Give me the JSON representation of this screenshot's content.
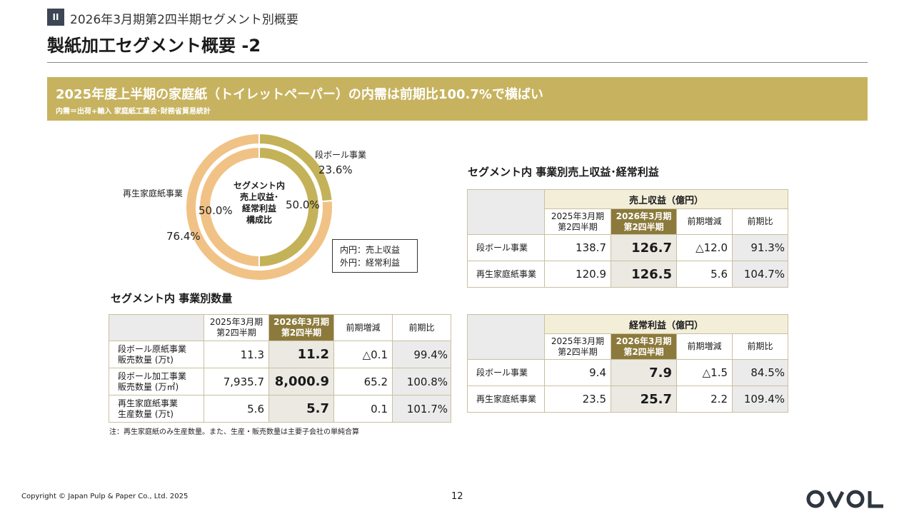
{
  "header": {
    "section_number": "II",
    "section_title": "2026年3月期第2四半期セグメント別概要",
    "page_title": "製紙加工セグメント概要 -2"
  },
  "banner": {
    "headline": "2025年度上半期の家庭紙（トイレットペーパー）の内需は前期比100.7%で横ばい",
    "subtext": "内需＝出荷+輸入 家庭紙工業会･財務省貿易統計"
  },
  "donut": {
    "center_lines": [
      "セグメント内",
      "売上収益･",
      "経常利益",
      "構成比"
    ],
    "inner_ring": {
      "name": "売上収益",
      "values": [
        {
          "segment": "段ボール事業",
          "label": "50.0%",
          "value": 50.0
        },
        {
          "segment": "再生家庭紙事業",
          "label": "50.0%",
          "value": 50.0
        }
      ]
    },
    "outer_ring": {
      "name": "経常利益",
      "values": [
        {
          "segment": "段ボール事業",
          "label": "23.6%",
          "value": 23.6
        },
        {
          "segment": "再生家庭紙事業",
          "label": "76.4%",
          "value": 76.4
        }
      ]
    },
    "segment_labels": {
      "cardboard": "段ボール事業",
      "tissue": "再生家庭紙事業"
    },
    "legend": [
      "内円：売上収益",
      "外円：経常利益"
    ],
    "colors": {
      "cardboard": "#c4b259",
      "tissue": "#f1c286"
    }
  },
  "volume_table": {
    "title": "セグメント内 事業別数量",
    "columns": [
      "2025年3月期\n第2四半期",
      "2026年3月期\n第2四半期",
      "前期増減",
      "前期比"
    ],
    "rows": [
      {
        "label": "段ボール原紙事業\n販売数量 (万t)",
        "prev": "11.3",
        "cur": "11.2",
        "diff": "△0.1",
        "ratio": "99.4%"
      },
      {
        "label": "段ボール加工事業\n販売数量 (万㎡)",
        "prev": "7,935.7",
        "cur": "8,000.9",
        "diff": "65.2",
        "ratio": "100.8%"
      },
      {
        "label": "再生家庭紙事業\n生産数量 (万t)",
        "prev": "5.6",
        "cur": "5.7",
        "diff": "0.1",
        "ratio": "101.7%"
      }
    ]
  },
  "revenue_section_title": "セグメント内 事業別売上収益･経常利益",
  "revenue_table": {
    "group_header": "売上収益（億円）",
    "columns": [
      "2025年3月期\n第2四半期",
      "2026年3月期\n第2四半期",
      "前期増減",
      "前期比"
    ],
    "rows": [
      {
        "label": "段ボール事業",
        "prev": "138.7",
        "cur": "126.7",
        "diff": "△12.0",
        "ratio": "91.3%"
      },
      {
        "label": "再生家庭紙事業",
        "prev": "120.9",
        "cur": "126.5",
        "diff": "5.6",
        "ratio": "104.7%"
      }
    ]
  },
  "profit_table": {
    "group_header": "経常利益（億円）",
    "columns": [
      "2025年3月期\n第2四半期",
      "2026年3月期\n第2四半期",
      "前期増減",
      "前期比"
    ],
    "rows": [
      {
        "label": "段ボール事業",
        "prev": "9.4",
        "cur": "7.9",
        "diff": "△1.5",
        "ratio": "84.5%"
      },
      {
        "label": "再生家庭紙事業",
        "prev": "23.5",
        "cur": "25.7",
        "diff": "2.2",
        "ratio": "109.4%"
      }
    ]
  },
  "note": "注：再生家庭紙のみ生産数量。また、生産・販売数量は主要子会社の単純合算",
  "footer": {
    "copyright": "Copyright © Japan Pulp & Paper Co., Ltd. 2025",
    "page_number": "12",
    "logo_text": "OVOL"
  }
}
